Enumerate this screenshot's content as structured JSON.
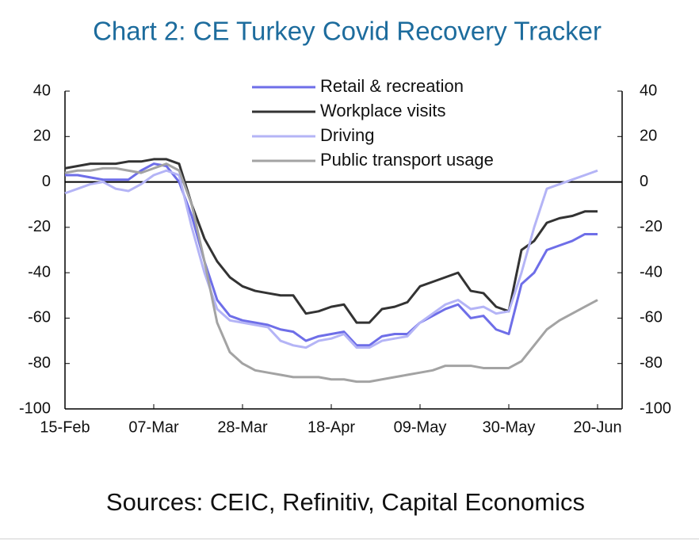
{
  "chart_data": {
    "type": "line",
    "title": "Chart 2: CE Turkey Covid Recovery Tracker",
    "source": "Sources: CEIC, Refinitiv, Capital Economics",
    "categories": [
      "15-Feb",
      null,
      null,
      null,
      null,
      null,
      null,
      "07-Mar",
      null,
      null,
      null,
      null,
      null,
      null,
      "28-Mar",
      null,
      null,
      null,
      null,
      null,
      null,
      "18-Apr",
      null,
      null,
      null,
      null,
      null,
      null,
      "09-May",
      null,
      null,
      null,
      null,
      null,
      null,
      "30-May",
      null,
      null,
      null,
      null,
      null,
      null,
      "20-Jun"
    ],
    "series": [
      {
        "name": "Retail & recreation",
        "color": "#6e6ee8",
        "values": [
          3,
          3,
          2,
          1,
          1,
          1,
          5,
          8,
          7,
          0,
          -15,
          -35,
          -52,
          -59,
          -61,
          -62,
          -63,
          -65,
          -66,
          -70,
          -68,
          -67,
          -66,
          -72,
          -72,
          -68,
          -67,
          -67,
          -62,
          -59,
          -56,
          -54,
          -60,
          -59,
          -65,
          -67,
          -45,
          -40,
          -30,
          -28,
          -26,
          -23,
          -23
        ]
      },
      {
        "name": "Workplace visits",
        "color": "#333333",
        "values": [
          6,
          7,
          8,
          8,
          8,
          9,
          9,
          10,
          10,
          8,
          -10,
          -25,
          -35,
          -42,
          -46,
          -48,
          -49,
          -50,
          -50,
          -58,
          -57,
          -55,
          -54,
          -62,
          -62,
          -56,
          -55,
          -53,
          -46,
          -44,
          -42,
          -40,
          -48,
          -49,
          -55,
          -57,
          -30,
          -26,
          -18,
          -16,
          -15,
          -13,
          -13
        ]
      },
      {
        "name": "Driving",
        "color": "#b4b4f6",
        "values": [
          -5,
          -3,
          -1,
          0,
          -3,
          -4,
          -1,
          3,
          5,
          3,
          -20,
          -40,
          -56,
          -61,
          -62,
          -63,
          -64,
          -70,
          -72,
          -73,
          -70,
          -69,
          -67,
          -73,
          -73,
          -70,
          -69,
          -68,
          -62,
          -58,
          -54,
          -52,
          -56,
          -55,
          -58,
          -57,
          -40,
          -20,
          -3,
          -1,
          1,
          3,
          5
        ]
      },
      {
        "name": "Public transport usage",
        "color": "#a3a3a3",
        "values": [
          4,
          5,
          5,
          6,
          6,
          5,
          4,
          6,
          8,
          5,
          -10,
          -35,
          -62,
          -75,
          -80,
          -83,
          -84,
          -85,
          -86,
          -86,
          -86,
          -87,
          -87,
          -88,
          -88,
          -87,
          -86,
          -85,
          -84,
          -83,
          -81,
          -81,
          -81,
          -82,
          -82,
          -82,
          -79,
          -72,
          -65,
          -61,
          -58,
          -55,
          -52
        ]
      }
    ],
    "ylim": [
      -100,
      40
    ],
    "yticks": [
      -100,
      -80,
      -60,
      -40,
      -20,
      0,
      20,
      40
    ],
    "y2lim": [
      -100,
      40
    ],
    "y2ticks": [
      -100,
      -80,
      -60,
      -40,
      -20,
      0,
      20,
      40
    ]
  }
}
